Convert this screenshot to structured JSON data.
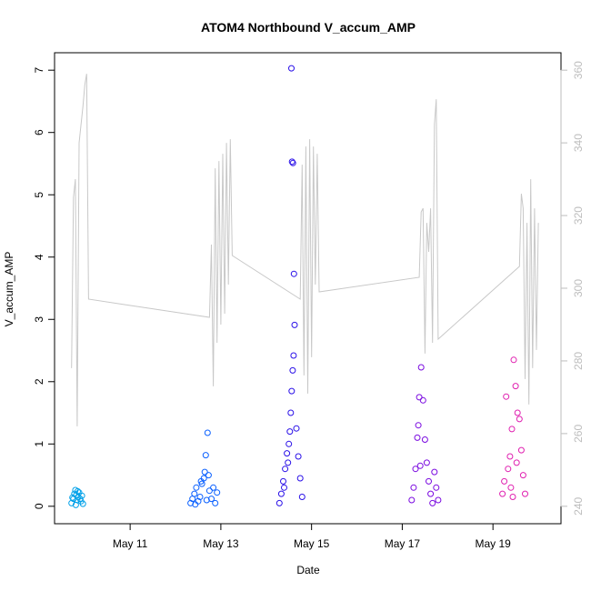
{
  "chart_data": {
    "type": "scatter",
    "title": "ATOM4 Northbound V_accum_AMP",
    "xlabel": "Date",
    "ylabel": "V_accum_AMP",
    "xlim": [
      "2023-05-09T08:00",
      "2023-05-20T12:00"
    ],
    "ylim": [
      0,
      7
    ],
    "y2lim": [
      240,
      360
    ],
    "x_ticks": [
      {
        "label": "May 11",
        "value": "2023-05-11T00:00"
      },
      {
        "label": "May 13",
        "value": "2023-05-13T00:00"
      },
      {
        "label": "May 15",
        "value": "2023-05-15T00:00"
      },
      {
        "label": "May 17",
        "value": "2023-05-17T00:00"
      },
      {
        "label": "May 19",
        "value": "2023-05-19T00:00"
      }
    ],
    "y_ticks": [
      0,
      1,
      2,
      3,
      4,
      5,
      6,
      7
    ],
    "y2_ticks": [
      240,
      260,
      280,
      300,
      320,
      340,
      360
    ],
    "grid": false,
    "series": [
      {
        "color": "#00a0e8",
        "points": [
          [
            "2023-05-09T17:00",
            0.05
          ],
          [
            "2023-05-09T18:00",
            0.12
          ],
          [
            "2023-05-09T18:30",
            0.2
          ],
          [
            "2023-05-09T19:00",
            0.26
          ],
          [
            "2023-05-09T19:30",
            0.18
          ],
          [
            "2023-05-09T20:00",
            0.1
          ],
          [
            "2023-05-09T20:30",
            0.15
          ],
          [
            "2023-05-09T21:00",
            0.22
          ],
          [
            "2023-05-09T22:00",
            0.08
          ],
          [
            "2023-05-09T22:30",
            0.17
          ],
          [
            "2023-05-09T23:00",
            0.04
          ],
          [
            "2023-05-09T19:15",
            0.02
          ],
          [
            "2023-05-09T21:30",
            0.12
          ],
          [
            "2023-05-09T17:30",
            0.14
          ],
          [
            "2023-05-09T20:15",
            0.24
          ]
        ]
      },
      {
        "color": "#0a60ff",
        "points": [
          [
            "2023-05-12T08:00",
            0.05
          ],
          [
            "2023-05-12T09:00",
            0.12
          ],
          [
            "2023-05-12T10:00",
            0.2
          ],
          [
            "2023-05-12T11:00",
            0.3
          ],
          [
            "2023-05-12T12:00",
            0.08
          ],
          [
            "2023-05-12T13:00",
            0.15
          ],
          [
            "2023-05-12T14:00",
            0.36
          ],
          [
            "2023-05-12T15:00",
            0.45
          ],
          [
            "2023-05-12T15:30",
            0.55
          ],
          [
            "2023-05-12T16:00",
            0.82
          ],
          [
            "2023-05-12T17:00",
            1.18
          ],
          [
            "2023-05-12T18:00",
            0.25
          ],
          [
            "2023-05-12T19:00",
            0.12
          ],
          [
            "2023-05-12T20:00",
            0.3
          ],
          [
            "2023-05-12T21:00",
            0.05
          ],
          [
            "2023-05-12T22:00",
            0.22
          ],
          [
            "2023-05-12T10:30",
            0.03
          ],
          [
            "2023-05-12T13:30",
            0.4
          ],
          [
            "2023-05-12T17:30",
            0.5
          ],
          [
            "2023-05-12T16:30",
            0.1
          ]
        ]
      },
      {
        "color": "#2a10e8",
        "points": [
          [
            "2023-05-14T07:00",
            0.05
          ],
          [
            "2023-05-14T08:00",
            0.2
          ],
          [
            "2023-05-14T09:00",
            0.4
          ],
          [
            "2023-05-14T10:00",
            0.6
          ],
          [
            "2023-05-14T11:00",
            0.85
          ],
          [
            "2023-05-14T12:00",
            1.0
          ],
          [
            "2023-05-14T12:30",
            1.2
          ],
          [
            "2023-05-14T13:00",
            1.5
          ],
          [
            "2023-05-14T13:30",
            1.85
          ],
          [
            "2023-05-14T14:00",
            2.18
          ],
          [
            "2023-05-14T14:30",
            2.42
          ],
          [
            "2023-05-14T15:00",
            2.91
          ],
          [
            "2023-05-14T13:20",
            7.03
          ],
          [
            "2023-05-14T13:40",
            5.53
          ],
          [
            "2023-05-14T14:10",
            5.51
          ],
          [
            "2023-05-14T14:40",
            3.73
          ],
          [
            "2023-05-14T16:00",
            1.25
          ],
          [
            "2023-05-14T17:00",
            0.8
          ],
          [
            "2023-05-14T18:00",
            0.45
          ],
          [
            "2023-05-14T19:00",
            0.15
          ],
          [
            "2023-05-14T09:30",
            0.3
          ],
          [
            "2023-05-14T11:30",
            0.7
          ]
        ]
      },
      {
        "color": "#7a0ae0",
        "points": [
          [
            "2023-05-17T05:00",
            0.1
          ],
          [
            "2023-05-17T06:00",
            0.3
          ],
          [
            "2023-05-17T07:00",
            0.6
          ],
          [
            "2023-05-17T08:00",
            1.1
          ],
          [
            "2023-05-17T09:00",
            1.75
          ],
          [
            "2023-05-17T10:00",
            2.23
          ],
          [
            "2023-05-17T11:00",
            1.7
          ],
          [
            "2023-05-17T12:00",
            1.07
          ],
          [
            "2023-05-17T13:00",
            0.7
          ],
          [
            "2023-05-17T14:00",
            0.4
          ],
          [
            "2023-05-17T15:00",
            0.2
          ],
          [
            "2023-05-17T16:00",
            0.05
          ],
          [
            "2023-05-17T17:00",
            0.55
          ],
          [
            "2023-05-17T18:00",
            0.3
          ],
          [
            "2023-05-17T19:00",
            0.1
          ],
          [
            "2023-05-17T08:30",
            1.3
          ],
          [
            "2023-05-17T09:30",
            0.65
          ]
        ]
      },
      {
        "color": "#e020b0",
        "points": [
          [
            "2023-05-19T05:00",
            0.2
          ],
          [
            "2023-05-19T06:00",
            0.4
          ],
          [
            "2023-05-19T07:00",
            1.76
          ],
          [
            "2023-05-19T08:00",
            0.6
          ],
          [
            "2023-05-19T09:00",
            0.8
          ],
          [
            "2023-05-19T10:00",
            1.24
          ],
          [
            "2023-05-19T11:00",
            2.35
          ],
          [
            "2023-05-19T12:00",
            1.93
          ],
          [
            "2023-05-19T13:00",
            1.5
          ],
          [
            "2023-05-19T14:00",
            1.4
          ],
          [
            "2023-05-19T15:00",
            0.9
          ],
          [
            "2023-05-19T16:00",
            0.5
          ],
          [
            "2023-05-19T17:00",
            0.2
          ],
          [
            "2023-05-19T09:30",
            0.3
          ],
          [
            "2023-05-19T12:30",
            0.7
          ],
          [
            "2023-05-19T10:30",
            0.15
          ]
        ]
      }
    ],
    "line_series": {
      "axis": "right",
      "color": "#c8c8c8",
      "points": [
        [
          "2023-05-09T17:00",
          278
        ],
        [
          "2023-05-09T18:00",
          325
        ],
        [
          "2023-05-09T19:00",
          330
        ],
        [
          "2023-05-09T20:00",
          262
        ],
        [
          "2023-05-09T21:00",
          340
        ],
        [
          "2023-05-09T22:00",
          345
        ],
        [
          "2023-05-09T23:00",
          350
        ],
        [
          "2023-05-10T00:00",
          356
        ],
        [
          "2023-05-10T01:00",
          359
        ],
        [
          "2023-05-10T02:00",
          297
        ],
        [
          "2023-05-12T18:00",
          292
        ],
        [
          "2023-05-12T19:00",
          312
        ],
        [
          "2023-05-12T20:00",
          273
        ],
        [
          "2023-05-12T21:00",
          333
        ],
        [
          "2023-05-12T22:00",
          285
        ],
        [
          "2023-05-12T23:00",
          335
        ],
        [
          "2023-05-13T00:00",
          290
        ],
        [
          "2023-05-13T01:00",
          337
        ],
        [
          "2023-05-13T02:00",
          293
        ],
        [
          "2023-05-13T03:00",
          340
        ],
        [
          "2023-05-13T04:00",
          301
        ],
        [
          "2023-05-13T05:00",
          341
        ],
        [
          "2023-05-13T06:00",
          309
        ],
        [
          "2023-05-14T18:00",
          297
        ],
        [
          "2023-05-14T19:00",
          334
        ],
        [
          "2023-05-14T20:00",
          276
        ],
        [
          "2023-05-14T21:00",
          339
        ],
        [
          "2023-05-14T22:00",
          271
        ],
        [
          "2023-05-14T23:00",
          341
        ],
        [
          "2023-05-15T00:00",
          281
        ],
        [
          "2023-05-15T01:00",
          339
        ],
        [
          "2023-05-15T02:00",
          301
        ],
        [
          "2023-05-15T03:00",
          337
        ],
        [
          "2023-05-15T04:00",
          299
        ],
        [
          "2023-05-17T09:00",
          303
        ],
        [
          "2023-05-17T10:00",
          321
        ],
        [
          "2023-05-17T11:00",
          322
        ],
        [
          "2023-05-17T12:00",
          282
        ],
        [
          "2023-05-17T13:00",
          318
        ],
        [
          "2023-05-17T14:00",
          310
        ],
        [
          "2023-05-17T15:00",
          322
        ],
        [
          "2023-05-17T16:00",
          285
        ],
        [
          "2023-05-17T17:00",
          345
        ],
        [
          "2023-05-17T18:00",
          352
        ],
        [
          "2023-05-17T19:00",
          286
        ],
        [
          "2023-05-19T14:00",
          306
        ],
        [
          "2023-05-19T15:00",
          326
        ],
        [
          "2023-05-19T16:00",
          322
        ],
        [
          "2023-05-19T17:00",
          275
        ],
        [
          "2023-05-19T18:00",
          318
        ],
        [
          "2023-05-19T19:00",
          268
        ],
        [
          "2023-05-19T20:00",
          330
        ],
        [
          "2023-05-19T21:00",
          278
        ],
        [
          "2023-05-19T22:00",
          322
        ],
        [
          "2023-05-19T23:00",
          283
        ],
        [
          "2023-05-20T00:00",
          318
        ]
      ]
    }
  }
}
